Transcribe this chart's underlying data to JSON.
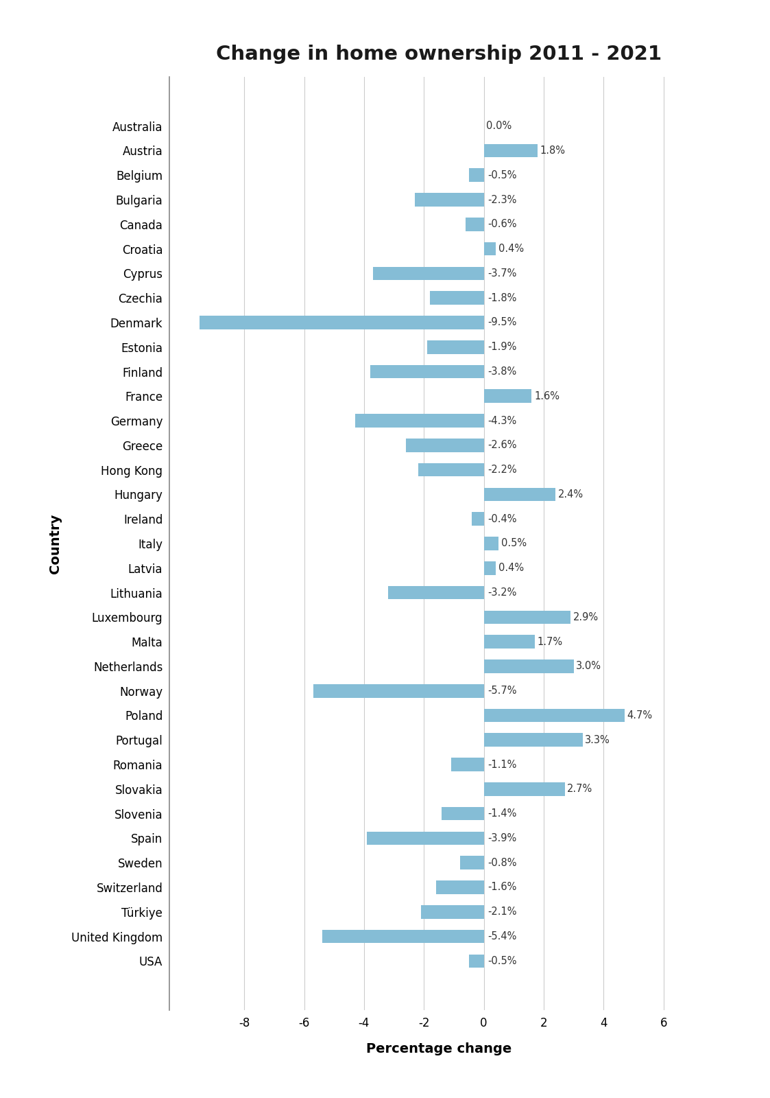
{
  "title": "Change in home ownership 2011 - 2021",
  "xlabel": "Percentage change",
  "ylabel": "Country",
  "bar_color": "#85bdd6",
  "background_color": "#ffffff",
  "xlim": [
    -10.5,
    7.5
  ],
  "xticks": [
    -8,
    -6,
    -4,
    -2,
    0,
    2,
    4,
    6
  ],
  "countries": [
    "Australia",
    "Austria",
    "Belgium",
    "Bulgaria",
    "Canada",
    "Croatia",
    "Cyprus",
    "Czechia",
    "Denmark",
    "Estonia",
    "Finland",
    "France",
    "Germany",
    "Greece",
    "Hong Kong",
    "Hungary",
    "Ireland",
    "Italy",
    "Latvia",
    "Lithuania",
    "Luxembourg",
    "Malta",
    "Netherlands",
    "Norway",
    "Poland",
    "Portugal",
    "Romania",
    "Slovakia",
    "Slovenia",
    "Spain",
    "Sweden",
    "Switzerland",
    "Türkiye",
    "United Kingdom",
    "USA"
  ],
  "values": [
    0.0,
    1.8,
    -0.5,
    -2.3,
    -0.6,
    0.4,
    -3.7,
    -1.8,
    -9.5,
    -1.9,
    -3.8,
    1.6,
    -4.3,
    -2.6,
    -2.2,
    2.4,
    -0.4,
    0.5,
    0.4,
    -3.2,
    2.9,
    1.7,
    3.0,
    -5.7,
    4.7,
    3.3,
    -1.1,
    2.7,
    -1.4,
    -3.9,
    -0.8,
    -1.6,
    -2.1,
    -5.4,
    -0.5
  ],
  "title_fontsize": 21,
  "tick_fontsize": 12,
  "bar_label_fontsize": 10.5,
  "axis_label_fontsize": 14
}
